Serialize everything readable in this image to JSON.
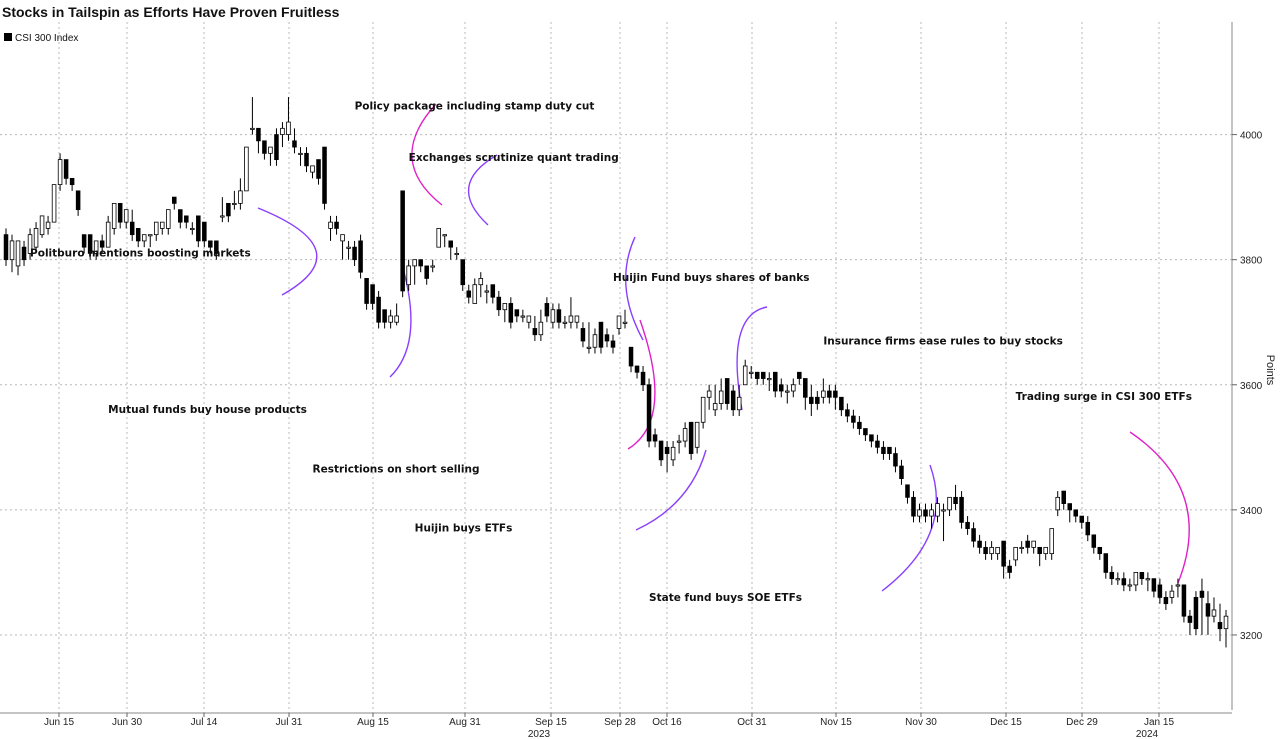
{
  "chart_data": {
    "type": "candlestick",
    "title": "Stocks in Tailspin as Efforts Have Proven Fruitless",
    "legend": {
      "label": "CSI 300 Index",
      "placement": "top-left"
    },
    "ylabel": "Points",
    "ylim": [
      3080,
      4180
    ],
    "yticks": [
      3200,
      3400,
      3600,
      3800,
      4000
    ],
    "grid": true,
    "x_ticks": [
      "Jun 15",
      "Jun 30",
      "Jul 14",
      "Jul 31",
      "Aug 15",
      "Aug 31",
      "Sep 15",
      "Sep 28",
      "Oct 16",
      "Oct 31",
      "Nov 15",
      "Nov 30",
      "Dec 15",
      "Dec 29",
      "Jan 15"
    ],
    "x_years": [
      {
        "label": "2023",
        "after_tick": 6
      },
      {
        "label": "2024",
        "after_tick": 14
      }
    ],
    "candles": [
      [
        3840,
        3800,
        3850,
        3790
      ],
      [
        3800,
        3830,
        3840,
        3780
      ],
      [
        3790,
        3830,
        3830,
        3775
      ],
      [
        3820,
        3800,
        3830,
        3790
      ],
      [
        3810,
        3840,
        3850,
        3800
      ],
      [
        3820,
        3850,
        3860,
        3815
      ],
      [
        3840,
        3870,
        3870,
        3835
      ],
      [
        3850,
        3860,
        3870,
        3840
      ],
      [
        3860,
        3920,
        3920,
        3860
      ],
      [
        3920,
        3960,
        3970,
        3910
      ],
      [
        3960,
        3930,
        3960,
        3920
      ],
      [
        3930,
        3920,
        3930,
        3910
      ],
      [
        3910,
        3880,
        3910,
        3870
      ],
      [
        3840,
        3820,
        3840,
        3810
      ],
      [
        3840,
        3810,
        3840,
        3800
      ],
      [
        3810,
        3830,
        3830,
        3800
      ],
      [
        3830,
        3820,
        3840,
        3810
      ],
      [
        3820,
        3860,
        3870,
        3820
      ],
      [
        3850,
        3890,
        3890,
        3840
      ],
      [
        3890,
        3860,
        3890,
        3850
      ],
      [
        3860,
        3880,
        3880,
        3850
      ],
      [
        3860,
        3840,
        3880,
        3830
      ],
      [
        3850,
        3830,
        3850,
        3820
      ],
      [
        3830,
        3840,
        3840,
        3820
      ],
      [
        3840,
        3840,
        3840,
        3820
      ],
      [
        3840,
        3860,
        3860,
        3830
      ],
      [
        3850,
        3860,
        3860,
        3840
      ],
      [
        3850,
        3880,
        3880,
        3840
      ],
      [
        3900,
        3890,
        3900,
        3880
      ],
      [
        3880,
        3860,
        3880,
        3850
      ],
      [
        3870,
        3860,
        3870,
        3850
      ],
      [
        3850,
        3850,
        3860,
        3840
      ],
      [
        3870,
        3830,
        3870,
        3820
      ],
      [
        3860,
        3830,
        3860,
        3820
      ],
      [
        3830,
        3820,
        3830,
        3810
      ],
      [
        3830,
        3810,
        3830,
        3800
      ],
      [
        3870,
        3870,
        3900,
        3860
      ],
      [
        3890,
        3870,
        3890,
        3860
      ],
      [
        3890,
        3890,
        3910,
        3880
      ],
      [
        3890,
        3910,
        3930,
        3880
      ],
      [
        3910,
        3980,
        3980,
        3910
      ],
      [
        4010,
        4010,
        4060,
        4000
      ],
      [
        4010,
        3990,
        4010,
        3970
      ],
      [
        3990,
        3970,
        3990,
        3960
      ],
      [
        3970,
        3980,
        3980,
        3950
      ],
      [
        4000,
        3960,
        4010,
        3950
      ],
      [
        4000,
        4010,
        4020,
        3980
      ],
      [
        4000,
        4020,
        4060,
        3990
      ],
      [
        3990,
        3980,
        4010,
        3970
      ],
      [
        3970,
        3970,
        3980,
        3950
      ],
      [
        3970,
        3950,
        3980,
        3940
      ],
      [
        3940,
        3950,
        3950,
        3930
      ],
      [
        3960,
        3930,
        3960,
        3920
      ],
      [
        3980,
        3890,
        3980,
        3880
      ],
      [
        3850,
        3860,
        3870,
        3830
      ],
      [
        3860,
        3850,
        3870,
        3840
      ],
      [
        3830,
        3840,
        3840,
        3800
      ],
      [
        3820,
        3820,
        3830,
        3800
      ],
      [
        3820,
        3800,
        3830,
        3790
      ],
      [
        3830,
        3780,
        3840,
        3770
      ],
      [
        3770,
        3730,
        3770,
        3720
      ],
      [
        3760,
        3730,
        3760,
        3720
      ],
      [
        3740,
        3700,
        3750,
        3690
      ],
      [
        3720,
        3700,
        3720,
        3690
      ],
      [
        3700,
        3710,
        3720,
        3690
      ],
      [
        3700,
        3710,
        3730,
        3695
      ],
      [
        3910,
        3750,
        3910,
        3740
      ],
      [
        3760,
        3790,
        3800,
        3750
      ],
      [
        3790,
        3800,
        3800,
        3760
      ],
      [
        3800,
        3790,
        3800,
        3780
      ],
      [
        3790,
        3770,
        3790,
        3760
      ],
      [
        3790,
        3790,
        3800,
        3780
      ],
      [
        3820,
        3850,
        3850,
        3820
      ],
      [
        3840,
        3840,
        3840,
        3820
      ],
      [
        3830,
        3820,
        3830,
        3800
      ],
      [
        3810,
        3810,
        3820,
        3800
      ],
      [
        3800,
        3760,
        3800,
        3750
      ],
      [
        3750,
        3740,
        3760,
        3730
      ],
      [
        3730,
        3760,
        3770,
        3730
      ],
      [
        3760,
        3770,
        3780,
        3740
      ],
      [
        3750,
        3750,
        3760,
        3730
      ],
      [
        3760,
        3740,
        3760,
        3730
      ],
      [
        3740,
        3720,
        3750,
        3710
      ],
      [
        3720,
        3730,
        3730,
        3700
      ],
      [
        3730,
        3700,
        3740,
        3690
      ],
      [
        3720,
        3710,
        3720,
        3700
      ],
      [
        3710,
        3710,
        3720,
        3700
      ],
      [
        3700,
        3710,
        3710,
        3690
      ],
      [
        3690,
        3680,
        3710,
        3670
      ],
      [
        3680,
        3700,
        3720,
        3670
      ],
      [
        3730,
        3710,
        3740,
        3700
      ],
      [
        3700,
        3720,
        3730,
        3690
      ],
      [
        3720,
        3700,
        3730,
        3690
      ],
      [
        3700,
        3700,
        3710,
        3690
      ],
      [
        3700,
        3710,
        3740,
        3690
      ],
      [
        3700,
        3710,
        3710,
        3690
      ],
      [
        3690,
        3670,
        3700,
        3660
      ],
      [
        3660,
        3660,
        3700,
        3650
      ],
      [
        3660,
        3680,
        3690,
        3650
      ],
      [
        3700,
        3660,
        3700,
        3650
      ],
      [
        3680,
        3670,
        3690,
        3660
      ],
      [
        3670,
        3660,
        3680,
        3650
      ],
      [
        3690,
        3710,
        3710,
        3680
      ],
      [
        3700,
        3700,
        3720,
        3690
      ],
      [
        3660,
        3630,
        3660,
        3620
      ],
      [
        3630,
        3620,
        3630,
        3610
      ],
      [
        3620,
        3600,
        3630,
        3590
      ],
      [
        3600,
        3510,
        3610,
        3500
      ],
      [
        3520,
        3510,
        3530,
        3500
      ],
      [
        3510,
        3480,
        3510,
        3470
      ],
      [
        3500,
        3490,
        3510,
        3460
      ],
      [
        3480,
        3500,
        3510,
        3470
      ],
      [
        3510,
        3510,
        3520,
        3490
      ],
      [
        3510,
        3530,
        3540,
        3500
      ],
      [
        3540,
        3490,
        3540,
        3480
      ],
      [
        3500,
        3540,
        3540,
        3490
      ],
      [
        3540,
        3580,
        3580,
        3530
      ],
      [
        3580,
        3590,
        3600,
        3560
      ],
      [
        3560,
        3570,
        3600,
        3550
      ],
      [
        3570,
        3590,
        3610,
        3560
      ],
      [
        3610,
        3570,
        3610,
        3560
      ],
      [
        3590,
        3560,
        3600,
        3550
      ],
      [
        3560,
        3580,
        3600,
        3550
      ],
      [
        3600,
        3630,
        3640,
        3600
      ],
      [
        3620,
        3620,
        3630,
        3610
      ],
      [
        3620,
        3610,
        3620,
        3600
      ],
      [
        3620,
        3610,
        3620,
        3600
      ],
      [
        3610,
        3610,
        3620,
        3590
      ],
      [
        3620,
        3590,
        3620,
        3580
      ],
      [
        3600,
        3590,
        3610,
        3580
      ],
      [
        3590,
        3590,
        3600,
        3570
      ],
      [
        3590,
        3600,
        3610,
        3580
      ],
      [
        3620,
        3610,
        3620,
        3600
      ],
      [
        3610,
        3580,
        3610,
        3560
      ],
      [
        3580,
        3570,
        3600,
        3550
      ],
      [
        3580,
        3570,
        3590,
        3560
      ],
      [
        3580,
        3590,
        3610,
        3570
      ],
      [
        3590,
        3580,
        3600,
        3570
      ],
      [
        3590,
        3580,
        3600,
        3560
      ],
      [
        3580,
        3560,
        3580,
        3550
      ],
      [
        3560,
        3550,
        3570,
        3540
      ],
      [
        3550,
        3540,
        3560,
        3530
      ],
      [
        3540,
        3530,
        3550,
        3520
      ],
      [
        3530,
        3520,
        3530,
        3510
      ],
      [
        3520,
        3510,
        3520,
        3500
      ],
      [
        3510,
        3500,
        3520,
        3490
      ],
      [
        3500,
        3490,
        3510,
        3480
      ],
      [
        3500,
        3490,
        3500,
        3480
      ],
      [
        3490,
        3470,
        3500,
        3460
      ],
      [
        3470,
        3450,
        3480,
        3440
      ],
      [
        3440,
        3420,
        3440,
        3410
      ],
      [
        3420,
        3390,
        3430,
        3380
      ],
      [
        3390,
        3400,
        3410,
        3380
      ],
      [
        3400,
        3390,
        3410,
        3380
      ],
      [
        3390,
        3400,
        3410,
        3370
      ],
      [
        3390,
        3410,
        3420,
        3380
      ],
      [
        3400,
        3400,
        3410,
        3350
      ],
      [
        3400,
        3420,
        3420,
        3390
      ],
      [
        3420,
        3410,
        3440,
        3400
      ],
      [
        3420,
        3380,
        3430,
        3370
      ],
      [
        3380,
        3370,
        3390,
        3360
      ],
      [
        3370,
        3350,
        3380,
        3340
      ],
      [
        3350,
        3340,
        3360,
        3330
      ],
      [
        3340,
        3330,
        3350,
        3320
      ],
      [
        3330,
        3340,
        3350,
        3320
      ],
      [
        3330,
        3340,
        3340,
        3320
      ],
      [
        3350,
        3310,
        3350,
        3290
      ],
      [
        3310,
        3300,
        3320,
        3290
      ],
      [
        3320,
        3340,
        3340,
        3310
      ],
      [
        3340,
        3340,
        3350,
        3330
      ],
      [
        3350,
        3340,
        3360,
        3330
      ],
      [
        3340,
        3350,
        3350,
        3330
      ],
      [
        3340,
        3330,
        3340,
        3310
      ],
      [
        3330,
        3340,
        3340,
        3320
      ],
      [
        3330,
        3370,
        3370,
        3320
      ],
      [
        3400,
        3420,
        3430,
        3390
      ],
      [
        3430,
        3410,
        3430,
        3400
      ],
      [
        3410,
        3400,
        3410,
        3380
      ],
      [
        3400,
        3390,
        3400,
        3380
      ],
      [
        3390,
        3380,
        3390,
        3370
      ],
      [
        3380,
        3360,
        3390,
        3350
      ],
      [
        3360,
        3340,
        3360,
        3330
      ],
      [
        3340,
        3330,
        3340,
        3320
      ],
      [
        3330,
        3300,
        3330,
        3290
      ],
      [
        3300,
        3290,
        3310,
        3280
      ],
      [
        3290,
        3290,
        3300,
        3280
      ],
      [
        3290,
        3280,
        3300,
        3270
      ],
      [
        3280,
        3280,
        3290,
        3270
      ],
      [
        3280,
        3300,
        3300,
        3270
      ],
      [
        3300,
        3290,
        3300,
        3280
      ],
      [
        3290,
        3290,
        3300,
        3270
      ],
      [
        3290,
        3270,
        3290,
        3260
      ],
      [
        3280,
        3260,
        3290,
        3250
      ],
      [
        3260,
        3250,
        3270,
        3240
      ],
      [
        3260,
        3270,
        3280,
        3250
      ],
      [
        3280,
        3280,
        3290,
        3260
      ],
      [
        3280,
        3230,
        3280,
        3220
      ],
      [
        3230,
        3220,
        3240,
        3200
      ],
      [
        3260,
        3210,
        3270,
        3200
      ],
      [
        3270,
        3260,
        3290,
        3200
      ],
      [
        3250,
        3230,
        3270,
        3200
      ],
      [
        3230,
        3240,
        3260,
        3220
      ],
      [
        3220,
        3210,
        3250,
        3190
      ],
      [
        3210,
        3230,
        3240,
        3180
      ]
    ],
    "annotations": [
      {
        "text": "Politburo mentions boosting markets",
        "x": 4,
        "y": 3805,
        "curve": "purple"
      },
      {
        "text": "Mutual funds buy house products",
        "x": 17,
        "y": 3555,
        "curve": "purple"
      },
      {
        "text": "Policy package including stamp duty cut",
        "x": 58,
        "y": 4040,
        "curve": "magenta"
      },
      {
        "text": "Exchanges scrutinize quant trading",
        "x": 67,
        "y": 3958,
        "curve": "purple"
      },
      {
        "text": "Restrictions on short selling",
        "x": 51,
        "y": 3460,
        "curve": "purple"
      },
      {
        "text": "Huijin Fund buys shares of banks",
        "x": 101,
        "y": 3766,
        "curve": "magenta"
      },
      {
        "text": "Huijin buys ETFs",
        "x": 68,
        "y": 3365,
        "curve": "purple"
      },
      {
        "text": "Insurance firms ease rules to buy stocks",
        "x": 136,
        "y": 3664,
        "curve": "purple"
      },
      {
        "text": "State fund buys SOE ETFs",
        "x": 107,
        "y": 3254,
        "curve": "purple"
      },
      {
        "text": "Trading surge in CSI 300 ETFs",
        "x": 168,
        "y": 3576,
        "curve": "magenta"
      }
    ],
    "colors": {
      "up_fill": "#ffffff",
      "down_fill": "#000000",
      "outline": "#000000",
      "grid": "#b8b8b8",
      "purple": "#8a3ffc",
      "magenta": "#e020c8"
    }
  }
}
